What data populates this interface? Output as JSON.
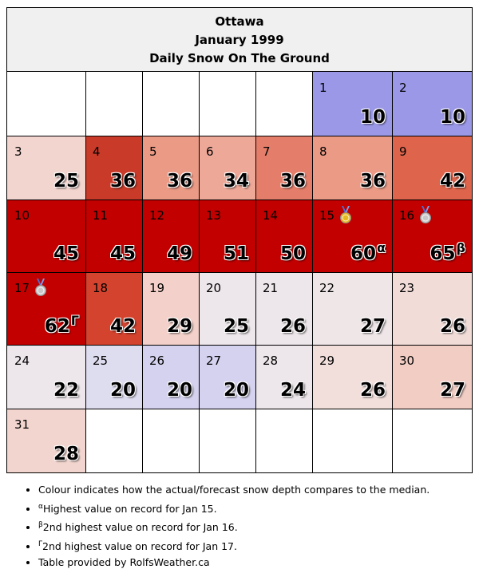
{
  "header": {
    "city": "Ottawa",
    "month": "January 1999",
    "title": "Daily Snow On The Ground"
  },
  "days": [
    {
      "day": "1",
      "value": "10",
      "color": "#9b98e8"
    },
    {
      "day": "2",
      "value": "10",
      "color": "#9b98e8"
    },
    {
      "day": "3",
      "value": "25",
      "color": "#f3d5cf"
    },
    {
      "day": "4",
      "value": "36",
      "color": "#c93a28"
    },
    {
      "day": "5",
      "value": "36",
      "color": "#ea9a85"
    },
    {
      "day": "6",
      "value": "34",
      "color": "#eea898"
    },
    {
      "day": "7",
      "value": "36",
      "color": "#e47e6a"
    },
    {
      "day": "8",
      "value": "36",
      "color": "#ea9a85"
    },
    {
      "day": "9",
      "value": "42",
      "color": "#de644c"
    },
    {
      "day": "10",
      "value": "45",
      "color": "#c30000"
    },
    {
      "day": "11",
      "value": "45",
      "color": "#c30000"
    },
    {
      "day": "12",
      "value": "49",
      "color": "#c30000"
    },
    {
      "day": "13",
      "value": "51",
      "color": "#c30000"
    },
    {
      "day": "14",
      "value": "50",
      "color": "#c30000"
    },
    {
      "day": "15",
      "value": "60",
      "sup": "α",
      "medal": "gold-medal-icon",
      "color": "#c30000"
    },
    {
      "day": "16",
      "value": "65",
      "sup": "β",
      "medal": "silver-medal-icon",
      "color": "#c30000"
    },
    {
      "day": "17",
      "value": "62",
      "sup": "Γ",
      "medal": "silver-medal-icon",
      "color": "#c30000"
    },
    {
      "day": "18",
      "value": "42",
      "color": "#d4432e"
    },
    {
      "day": "19",
      "value": "29",
      "color": "#f3d0c9"
    },
    {
      "day": "20",
      "value": "25",
      "color": "#ede6ea"
    },
    {
      "day": "21",
      "value": "26",
      "color": "#ede6ea"
    },
    {
      "day": "22",
      "value": "27",
      "color": "#efe6e8"
    },
    {
      "day": "23",
      "value": "26",
      "color": "#f2dcd8"
    },
    {
      "day": "24",
      "value": "22",
      "color": "#ede6ea"
    },
    {
      "day": "25",
      "value": "20",
      "color": "#dedcef"
    },
    {
      "day": "26",
      "value": "20",
      "color": "#d4d2ef"
    },
    {
      "day": "27",
      "value": "20",
      "color": "#d4d2ef"
    },
    {
      "day": "28",
      "value": "24",
      "color": "#ede6ea"
    },
    {
      "day": "29",
      "value": "26",
      "color": "#f2dfdb"
    },
    {
      "day": "30",
      "value": "27",
      "color": "#f2cdc4"
    },
    {
      "day": "31",
      "value": "28",
      "color": "#f2d5cf"
    }
  ],
  "notes": [
    {
      "sup": "",
      "text": "Colour indicates how the actual/forecast snow depth compares to the median."
    },
    {
      "sup": "α",
      "text": "Highest value on record for Jan 15."
    },
    {
      "sup": "β",
      "text": "2nd highest value on record for Jan 16."
    },
    {
      "sup": "Γ",
      "text": "2nd highest value on record for Jan 17."
    },
    {
      "sup": "",
      "text": "Table provided by RolfsWeather.ca"
    }
  ]
}
